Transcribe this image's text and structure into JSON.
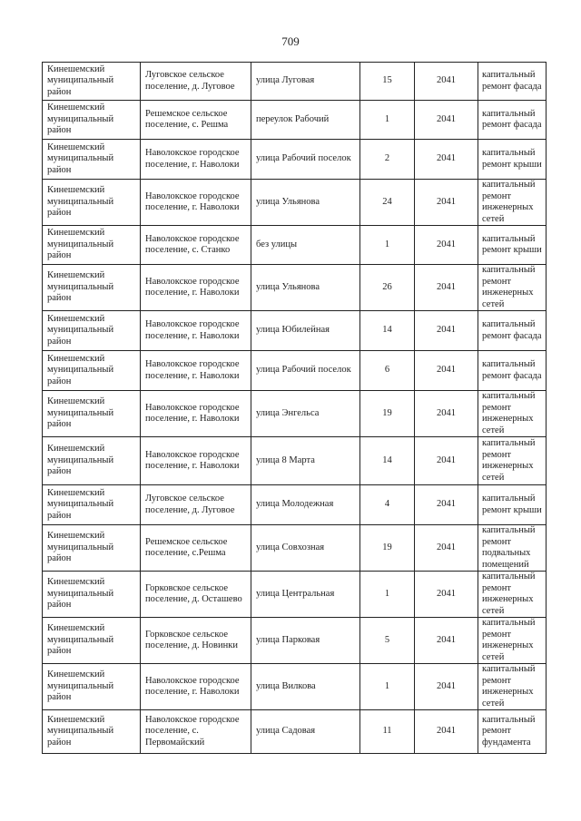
{
  "page_number": "709",
  "rows": [
    {
      "district": "Кинешемский муниципальный район",
      "settlement": "Луговское сельское поселение, д. Луговое",
      "street": "улица Луговая",
      "house": "15",
      "year": "2041",
      "work": "капитальный ремонт фасада"
    },
    {
      "district": "Кинешемский муниципальный район",
      "settlement": "Решемское сельское поселение, с. Решма",
      "street": "переулок Рабочий",
      "house": "1",
      "year": "2041",
      "work": "капитальный ремонт фасада"
    },
    {
      "district": "Кинешемский муниципальный район",
      "settlement": "Наволокское городское поселение, г. Наволоки",
      "street": "улица Рабочий поселок",
      "house": "2",
      "year": "2041",
      "work": "капитальный ремонт крыши"
    },
    {
      "district": "Кинешемский муниципальный район",
      "settlement": "Наволокское городское поселение, г. Наволоки",
      "street": "улица Ульянова",
      "house": "24",
      "year": "2041",
      "work": "капитальный ремонт инженерных сетей"
    },
    {
      "district": "Кинешемский муниципальный район",
      "settlement": "Наволокское городское поселение, с. Станко",
      "street": "без улицы",
      "house": "1",
      "year": "2041",
      "work": "капитальный ремонт крыши"
    },
    {
      "district": "Кинешемский муниципальный район",
      "settlement": "Наволокское городское поселение, г. Наволоки",
      "street": "улица Ульянова",
      "house": "26",
      "year": "2041",
      "work": "капитальный ремонт инженерных сетей"
    },
    {
      "district": "Кинешемский муниципальный район",
      "settlement": "Наволокское городское поселение, г. Наволоки",
      "street": "улица Юбилейная",
      "house": "14",
      "year": "2041",
      "work": "капитальный ремонт фасада"
    },
    {
      "district": "Кинешемский муниципальный район",
      "settlement": "Наволокское городское поселение, г. Наволоки",
      "street": "улица Рабочий поселок",
      "house": "6",
      "year": "2041",
      "work": "капитальный ремонт фасада"
    },
    {
      "district": "Кинешемский муниципальный район",
      "settlement": "Наволокское городское поселение, г. Наволоки",
      "street": "улица Энгельса",
      "house": "19",
      "year": "2041",
      "work": "капитальный ремонт инженерных сетей"
    },
    {
      "district": "Кинешемский муниципальный район",
      "settlement": "Наволокское городское поселение, г. Наволоки",
      "street": "улица 8 Марта",
      "house": "14",
      "year": "2041",
      "work": "капитальный ремонт инженерных сетей"
    },
    {
      "district": "Кинешемский муниципальный район",
      "settlement": "Луговское сельское поселение, д. Луговое",
      "street": "улица Молодежная",
      "house": "4",
      "year": "2041",
      "work": "капитальный ремонт крыши"
    },
    {
      "district": "Кинешемский муниципальный район",
      "settlement": "Решемское сельское поселение, с.Решма",
      "street": "улица Совхозная",
      "house": "19",
      "year": "2041",
      "work": "капитальный ремонт подвальных помещений"
    },
    {
      "district": "Кинешемский муниципальный район",
      "settlement": "Горковское сельское поселение, д. Осташево",
      "street": "улица Центральная",
      "house": "1",
      "year": "2041",
      "work": "капитальный ремонт инженерных сетей"
    },
    {
      "district": "Кинешемский муниципальный район",
      "settlement": "Горковское сельское поселение, д. Новинки",
      "street": "улица Парковая",
      "house": "5",
      "year": "2041",
      "work": "капитальный ремонт инженерных сетей"
    },
    {
      "district": "Кинешемский муниципальный район",
      "settlement": "Наволокское городское поселение, г. Наволоки",
      "street": "улица Вилкова",
      "house": "1",
      "year": "2041",
      "work": "капитальный ремонт инженерных сетей"
    },
    {
      "district": "Кинешемский муниципальный район",
      "settlement": "Наволокское городское поселение, с. Первомайский",
      "street": "улица Садовая",
      "house": "11",
      "year": "2041",
      "work": "капитальный ремонт фундамента"
    }
  ]
}
